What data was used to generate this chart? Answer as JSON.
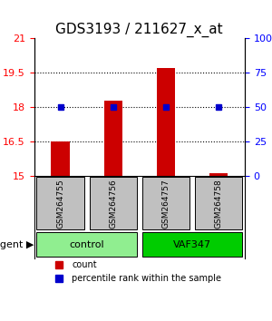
{
  "title": "GDS3193 / 211627_x_at",
  "samples": [
    "GSM264755",
    "GSM264756",
    "GSM264757",
    "GSM264758"
  ],
  "groups": [
    "control",
    "control",
    "VAF347",
    "VAF347"
  ],
  "group_labels": [
    "control",
    "VAF347"
  ],
  "group_colors": [
    "#90EE90",
    "#00CC00"
  ],
  "count_values": [
    16.5,
    18.3,
    19.7,
    15.1
  ],
  "percentile_values": [
    50,
    50,
    50,
    50
  ],
  "bar_color": "#CC0000",
  "dot_color": "#0000CC",
  "ylim_left": [
    15,
    21
  ],
  "ylim_right": [
    0,
    100
  ],
  "yticks_left": [
    15,
    16.5,
    18,
    19.5,
    21
  ],
  "yticks_right": [
    0,
    25,
    50,
    75,
    100
  ],
  "ytick_labels_right": [
    "0",
    "25",
    "50",
    "75",
    "100%"
  ],
  "grid_values": [
    16.5,
    18,
    19.5
  ],
  "title_fontsize": 11,
  "sample_gray": "#C0C0C0"
}
